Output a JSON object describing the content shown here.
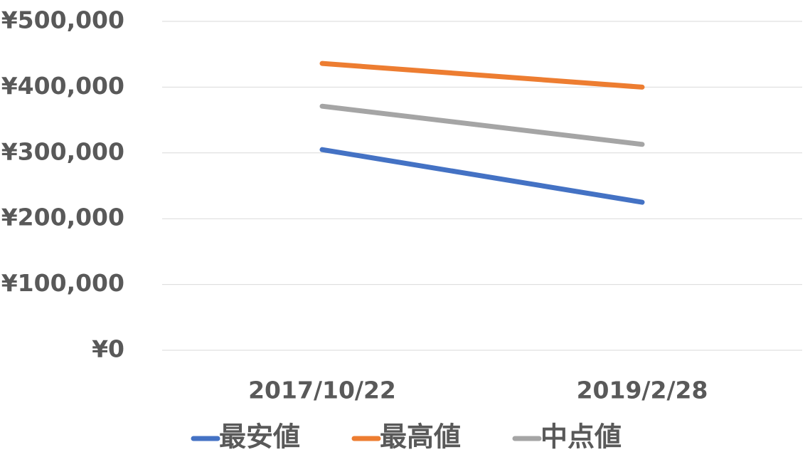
{
  "chart_data": {
    "type": "line",
    "categories": [
      "2017/10/22",
      "2019/2/28"
    ],
    "series": [
      {
        "name": "最安値",
        "color": "#4472c4",
        "values": [
          305000,
          225000
        ]
      },
      {
        "name": "最高値",
        "color": "#ed7d31",
        "values": [
          436000,
          400000
        ]
      },
      {
        "name": "中点値",
        "color": "#a5a5a5",
        "values": [
          371000,
          313000
        ]
      }
    ],
    "ylim": [
      0,
      500000
    ],
    "yticks": [
      {
        "value": 0,
        "label": "¥0"
      },
      {
        "value": 100000,
        "label": "¥100,000"
      },
      {
        "value": 200000,
        "label": "¥200,000"
      },
      {
        "value": 300000,
        "label": "¥300,000"
      },
      {
        "value": 400000,
        "label": "¥400,000"
      },
      {
        "value": 500000,
        "label": "¥500,000"
      }
    ],
    "grid": true,
    "legend": "bottom"
  }
}
